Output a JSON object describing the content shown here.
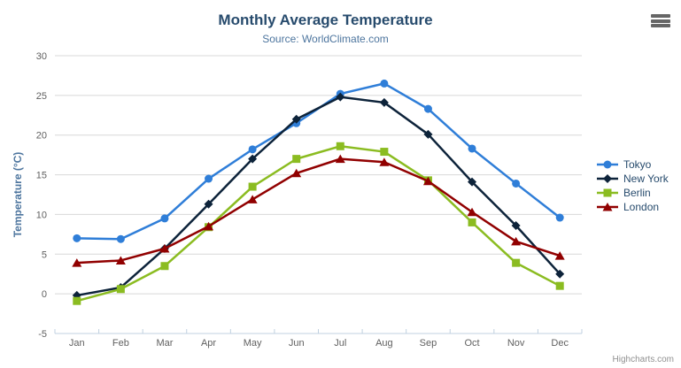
{
  "chart": {
    "title": "Monthly Average Temperature",
    "subtitle": "Source: WorldClimate.com",
    "y_axis_title": "Temperature (°C)",
    "credits": "Highcharts.com",
    "menu_icon": "hamburger-icon"
  },
  "chart_data": {
    "type": "line",
    "title": "Monthly Average Temperature",
    "subtitle": "Source: WorldClimate.com",
    "xlabel": "",
    "ylabel": "Temperature (°C)",
    "ylim": [
      -5,
      30
    ],
    "yticks": [
      -5,
      0,
      5,
      10,
      15,
      20,
      25,
      30
    ],
    "grid": true,
    "legend_position": "right",
    "categories": [
      "Jan",
      "Feb",
      "Mar",
      "Apr",
      "May",
      "Jun",
      "Jul",
      "Aug",
      "Sep",
      "Oct",
      "Nov",
      "Dec"
    ],
    "series": [
      {
        "name": "Tokyo",
        "color": "#2f7ed8",
        "marker": "circle",
        "values": [
          7.0,
          6.9,
          9.5,
          14.5,
          18.2,
          21.5,
          25.2,
          26.5,
          23.3,
          18.3,
          13.9,
          9.6
        ]
      },
      {
        "name": "New York",
        "color": "#0d233a",
        "marker": "diamond",
        "values": [
          -0.2,
          0.8,
          5.7,
          11.3,
          17.0,
          22.0,
          24.8,
          24.1,
          20.1,
          14.1,
          8.6,
          2.5
        ]
      },
      {
        "name": "Berlin",
        "color": "#8bbc21",
        "marker": "square",
        "values": [
          -0.9,
          0.6,
          3.5,
          8.4,
          13.5,
          17.0,
          18.6,
          17.9,
          14.3,
          9.0,
          3.9,
          1.0
        ]
      },
      {
        "name": "London",
        "color": "#910000",
        "marker": "triangle",
        "values": [
          3.9,
          4.2,
          5.7,
          8.5,
          11.9,
          15.2,
          17.0,
          16.6,
          14.2,
          10.3,
          6.6,
          4.8
        ]
      }
    ]
  },
  "colors": {
    "title": "#274b6d",
    "subtitle": "#4d759e",
    "axis_title": "#4d759e",
    "tick_label": "#606060",
    "grid_line": "#d8d8d8",
    "axis_line": "#c0d0e0",
    "legend_text": "#274b6d",
    "credits": "#909090",
    "menu_icon": "#666666",
    "background": "#ffffff"
  }
}
